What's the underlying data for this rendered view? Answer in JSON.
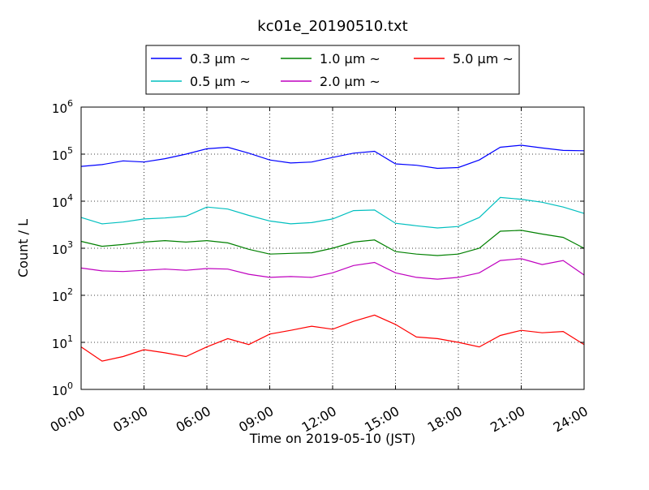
{
  "chart_data": {
    "type": "line",
    "title": "kc01e_20190510.txt",
    "xlabel": "Time on 2019-05-10 (JST)",
    "ylabel": "Count / L",
    "yscale": "log",
    "ylim": [
      1,
      1000000
    ],
    "xlim": [
      "00:00",
      "24:00"
    ],
    "x_ticks": [
      "00:00",
      "03:00",
      "06:00",
      "09:00",
      "12:00",
      "15:00",
      "18:00",
      "21:00",
      "24:00"
    ],
    "y_ticks": [
      {
        "base": "10",
        "exp": "0"
      },
      {
        "base": "10",
        "exp": "1"
      },
      {
        "base": "10",
        "exp": "2"
      },
      {
        "base": "10",
        "exp": "3"
      },
      {
        "base": "10",
        "exp": "4"
      },
      {
        "base": "10",
        "exp": "5"
      },
      {
        "base": "10",
        "exp": "6"
      }
    ],
    "grid": true,
    "legend_position": "top-center",
    "x_hours": [
      0,
      1,
      2,
      3,
      4,
      5,
      6,
      7,
      8,
      9,
      10,
      11,
      12,
      13,
      14,
      15,
      16,
      17,
      18,
      19,
      20,
      21,
      22,
      23,
      24
    ],
    "series": [
      {
        "name": "0.3 μm ~",
        "color": "#0000ff",
        "values": [
          55000,
          60000,
          72000,
          68000,
          80000,
          100000,
          130000,
          140000,
          105000,
          75000,
          65000,
          68000,
          85000,
          105000,
          115000,
          62000,
          58000,
          50000,
          52000,
          75000,
          140000,
          155000,
          135000,
          120000,
          118000
        ]
      },
      {
        "name": "0.5 μm ~",
        "color": "#00bfbf",
        "values": [
          4500,
          3300,
          3600,
          4200,
          4400,
          4800,
          7500,
          6800,
          5000,
          3800,
          3300,
          3500,
          4200,
          6300,
          6500,
          3400,
          3000,
          2700,
          2900,
          4500,
          12000,
          11000,
          9500,
          7500,
          5500
        ]
      },
      {
        "name": "1.0 μm ~",
        "color": "#008000",
        "values": [
          1400,
          1100,
          1200,
          1350,
          1450,
          1350,
          1450,
          1300,
          950,
          750,
          780,
          800,
          1000,
          1350,
          1500,
          850,
          750,
          700,
          750,
          1000,
          2300,
          2400,
          2000,
          1700,
          1000
        ]
      },
      {
        "name": "2.0 μm ~",
        "color": "#bf00bf",
        "values": [
          380,
          330,
          320,
          340,
          360,
          340,
          370,
          360,
          280,
          240,
          250,
          240,
          300,
          430,
          500,
          300,
          240,
          220,
          240,
          300,
          550,
          600,
          450,
          550,
          270
        ]
      },
      {
        "name": "5.0 μm ~",
        "color": "#ff0000",
        "values": [
          8,
          4,
          5,
          7,
          6,
          5,
          8,
          12,
          9,
          15,
          18,
          22,
          19,
          28,
          38,
          24,
          13,
          12,
          10,
          8,
          14,
          18,
          16,
          17,
          9
        ]
      }
    ]
  }
}
